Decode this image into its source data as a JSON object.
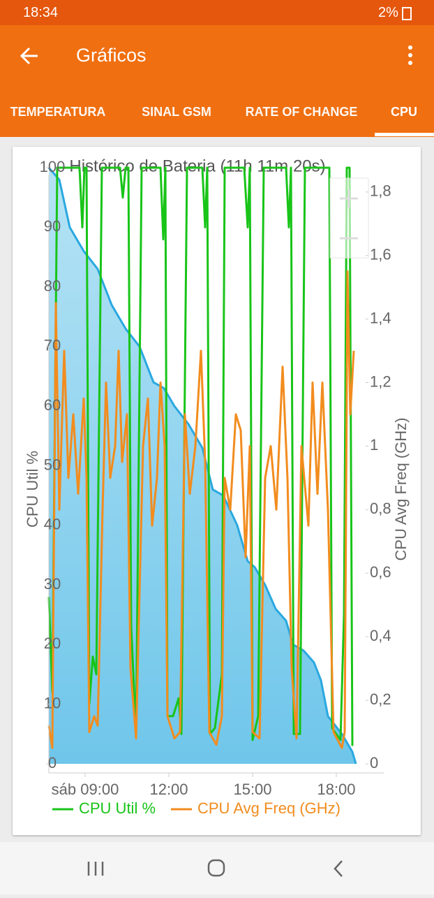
{
  "status_bar": {
    "time": "18:34",
    "battery": "2%"
  },
  "app_bar": {
    "title": "Gráficos"
  },
  "tabs": [
    "TEMPERATURA",
    "SINAL GSM",
    "RATE OF CHANGE",
    "CPU"
  ],
  "selected_tab": 3,
  "chart_data": {
    "type": "line",
    "title": "Histórico de Bateria (11h 11m 20s)",
    "y_label": "CPU Util %",
    "y2_label": "CPU Avg Freq (GHz)",
    "xlim": [
      7.7,
      19.7
    ],
    "xticks": [
      {
        "value": 9,
        "label": "sáb 09:00"
      },
      {
        "value": 12,
        "label": "12:00"
      },
      {
        "value": 15,
        "label": "15:00"
      },
      {
        "value": 18,
        "label": "18:00"
      }
    ],
    "ylim": [
      0,
      100
    ],
    "yticks": [
      0,
      10,
      20,
      30,
      40,
      50,
      60,
      70,
      80,
      90,
      100
    ],
    "y2lim": [
      0,
      1.85
    ],
    "y2ticks": [
      0,
      {
        "value": 0.2,
        "label": "0,2"
      },
      {
        "value": 0.4,
        "label": "0,4"
      },
      {
        "value": 0.6,
        "label": "0,6"
      },
      {
        "value": 0.8,
        "label": "0,8"
      },
      1,
      {
        "value": 1.2,
        "label": "1,2"
      },
      {
        "value": 1.4,
        "label": "1,4"
      },
      {
        "value": 1.6,
        "label": "1,6"
      },
      {
        "value": 1.8,
        "label": "1,8"
      }
    ],
    "series": [
      {
        "color": "#29a8e0",
        "area": true,
        "x": [
          7.7,
          8.075,
          8.45,
          8.95,
          9.45,
          9.95,
          10.45,
          10.95,
          11.45,
          11.825,
          12.2,
          12.7,
          13.2,
          13.575,
          13.95,
          14.45,
          14.825,
          15.075,
          15.45,
          15.825,
          16.2,
          16.45,
          16.825,
          17.2,
          17.45,
          17.7,
          18.2,
          18.575,
          18.7
        ],
        "values": [
          100,
          98,
          90,
          86,
          83,
          77,
          73,
          70,
          64,
          63,
          60,
          57,
          53,
          46,
          45,
          40,
          34,
          33,
          30,
          26,
          24,
          20,
          19,
          17,
          14,
          8,
          5,
          2,
          0
        ]
      },
      {
        "name": "CPU Util %",
        "color": "#18c418",
        "x": [
          7.7,
          7.825,
          8.0,
          8.8,
          8.9,
          8.975,
          9.05,
          9.15,
          9.275,
          9.4,
          9.6,
          10.25,
          10.35,
          10.45,
          10.55,
          10.65,
          10.825,
          11.025,
          11.7,
          11.8,
          11.875,
          11.95,
          12.15,
          12.35,
          12.45,
          12.65,
          13.2,
          13.3,
          13.375,
          13.475,
          13.65,
          13.9,
          14.0,
          14.7,
          14.825,
          14.9,
          15.0,
          15.2,
          15.4,
          16.2,
          16.3,
          16.375,
          16.475,
          16.7,
          16.875,
          17.75,
          17.85,
          18.15,
          18.275,
          18.375,
          18.475,
          18.575
        ],
        "values": [
          28,
          12,
          100,
          100,
          90,
          100,
          100,
          10,
          18,
          15,
          100,
          100,
          95,
          100,
          100,
          23,
          5,
          100,
          100,
          88,
          100,
          8,
          8,
          11,
          5,
          100,
          100,
          90,
          100,
          5,
          6,
          15,
          100,
          100,
          90,
          100,
          4,
          8,
          100,
          100,
          90,
          100,
          5,
          5,
          100,
          100,
          6,
          4,
          25,
          100,
          100,
          3
        ]
      },
      {
        "name": "CPU Avg Freq (GHz)",
        "color": "#f28c1e",
        "axis": "y2",
        "x": [
          7.7,
          7.825,
          7.95,
          8.075,
          8.25,
          8.4,
          8.575,
          8.75,
          8.95,
          9.05,
          9.15,
          9.325,
          9.45,
          9.625,
          9.75,
          9.9,
          10.075,
          10.2,
          10.325,
          10.5,
          10.625,
          10.825,
          11.075,
          11.25,
          11.4,
          11.575,
          11.7,
          11.85,
          11.95,
          12.2,
          12.4,
          12.575,
          12.75,
          12.95,
          13.15,
          13.3,
          13.45,
          13.7,
          13.9,
          14.0,
          14.2,
          14.4,
          14.575,
          14.75,
          14.9,
          15.0,
          15.25,
          15.45,
          15.65,
          15.85,
          16.075,
          16.25,
          16.4,
          16.575,
          16.75,
          17.0,
          17.15,
          17.325,
          17.5,
          17.7,
          17.9,
          18.2,
          18.3,
          18.4,
          18.5,
          18.625
        ],
        "values": [
          0.12,
          0.05,
          1.45,
          0.8,
          1.3,
          0.9,
          1.1,
          0.85,
          1.15,
          0.9,
          0.1,
          0.15,
          0.12,
          0.8,
          1.2,
          0.9,
          1.0,
          1.3,
          0.95,
          1.1,
          0.3,
          0.08,
          1.0,
          1.15,
          0.75,
          0.9,
          1.2,
          1.0,
          0.15,
          0.08,
          0.1,
          1.1,
          0.85,
          1.0,
          1.3,
          0.95,
          0.1,
          0.06,
          0.15,
          0.9,
          0.8,
          1.1,
          1.05,
          0.65,
          1.0,
          0.1,
          0.08,
          0.9,
          1.0,
          0.8,
          1.25,
          0.9,
          0.3,
          0.08,
          1.0,
          0.75,
          1.2,
          0.85,
          1.2,
          0.8,
          0.1,
          0.05,
          0.1,
          1.55,
          1.1,
          1.3
        ]
      }
    ]
  }
}
